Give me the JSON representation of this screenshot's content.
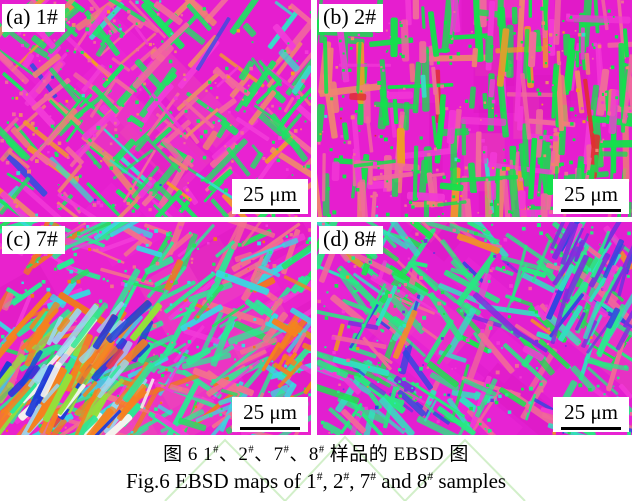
{
  "figure": {
    "panels": [
      {
        "id": "a",
        "label": "(a) 1#",
        "scale_label": "25 μm",
        "texture": {
          "seed": 11,
          "base": "#e61ecf",
          "patches": {
            "count": 16,
            "colors": [
              "#d916bd",
              "#f02ad8",
              "#ef4fb0"
            ],
            "opacity": 0.38
          },
          "laths": {
            "count": 260,
            "angles": [
              45,
              -45,
              40,
              -50
            ],
            "jitter": 10,
            "len": [
              14,
              62
            ],
            "wid": [
              2.5,
              7
            ],
            "palette": [
              [
                "#1ce463",
                5
              ],
              [
                "#f2689e",
                3
              ],
              [
                "#ee8570",
                2
              ],
              [
                "#38dcc8",
                0.8
              ],
              [
                "#f23ad8",
                2
              ],
              [
                "#f2a024",
                0.5
              ],
              [
                "#2b50e0",
                0.25
              ]
            ]
          },
          "speckles": {
            "count": 230,
            "size": [
              1.5,
              4
            ]
          },
          "clusters": []
        }
      },
      {
        "id": "b",
        "label": "(b) 2#",
        "scale_label": "25 μm",
        "texture": {
          "seed": 22,
          "base": "#e61ecf",
          "patches": {
            "count": 16,
            "colors": [
              "#d916bd",
              "#f02ad8",
              "#ef4fb0"
            ],
            "opacity": 0.38
          },
          "laths": {
            "count": 250,
            "angles": [
              90,
              90,
              90,
              0,
              88,
              92
            ],
            "jitter": 7,
            "len": [
              16,
              70
            ],
            "wid": [
              3,
              8
            ],
            "palette": [
              [
                "#14e04c",
                6
              ],
              [
                "#f06a9c",
                2.5
              ],
              [
                "#ee8570",
                1.5
              ],
              [
                "#f238d6",
                2
              ],
              [
                "#38dcc8",
                0.4
              ],
              [
                "#f09a28",
                0.4
              ],
              [
                "#e03030",
                0.2
              ]
            ]
          },
          "speckles": {
            "count": 240,
            "size": [
              1.5,
              4
            ]
          },
          "clusters": []
        }
      },
      {
        "id": "c",
        "label": "(c) 7#",
        "scale_label": "25 μm",
        "texture": {
          "seed": 33,
          "base": "#e922cd",
          "patches": {
            "count": 14,
            "colors": [
              "#d916bd",
              "#f02ad8",
              "#ef55b4"
            ],
            "opacity": 0.38
          },
          "laths": {
            "count": 250,
            "angles": [
              -30,
              25,
              -60,
              -25
            ],
            "jitter": 12,
            "len": [
              16,
              66
            ],
            "wid": [
              2.5,
              7
            ],
            "palette": [
              [
                "#2de895",
                5
              ],
              [
                "#38d8e0",
                2
              ],
              [
                "#f2708e",
                2.5
              ],
              [
                "#f23ad8",
                1.5
              ],
              [
                "#25e060",
                1.5
              ],
              [
                "#f07820",
                0.7
              ]
            ]
          },
          "speckles": {
            "count": 220,
            "size": [
              1.5,
              4
            ]
          },
          "clusters": [
            {
              "region": [
                0,
                95,
                150,
                122
              ],
              "count": 120,
              "angles": [
                -55,
                -48,
                -62
              ],
              "jitter": 6,
              "len": [
                16,
                66
              ],
              "wid": [
                3,
                8
              ],
              "palette": [
                [
                  "#f5821e",
                  4
                ],
                [
                  "#1e3cd8",
                  3
                ],
                [
                  "#93e03a",
                  2.5
                ],
                [
                  "#9ad8f0",
                  1.5
                ],
                [
                  "#f5f5ef",
                  1
                ],
                [
                  "#e84040",
                  0.8
                ],
                [
                  "#2de895",
                  1
                ]
              ]
            },
            {
              "region": [
                255,
                60,
                61,
                157
              ],
              "count": 40,
              "angles": [
                -55,
                30
              ],
              "jitter": 8,
              "len": [
                12,
                40
              ],
              "wid": [
                3,
                7
              ],
              "palette": [
                [
                  "#f5821e",
                  3
                ],
                [
                  "#38d8e0",
                  1.5
                ],
                [
                  "#2de895",
                  1.5
                ],
                [
                  "#f2708e",
                  1
                ]
              ]
            }
          ]
        }
      },
      {
        "id": "d",
        "label": "(d) 8#",
        "scale_label": "25 μm",
        "texture": {
          "seed": 44,
          "base": "#e21fd0",
          "patches": {
            "count": 15,
            "colors": [
              "#d916bd",
              "#f02ad8",
              "#ef4fb0"
            ],
            "opacity": 0.38
          },
          "laths": {
            "count": 255,
            "angles": [
              40,
              -65,
              20,
              45
            ],
            "jitter": 12,
            "len": [
              16,
              64
            ],
            "wid": [
              2.5,
              7
            ],
            "palette": [
              [
                "#28e882",
                5
              ],
              [
                "#32dfc0",
                1.5
              ],
              [
                "#f0689a",
                2
              ],
              [
                "#f238d6",
                1.5
              ],
              [
                "#1fe050",
                1.5
              ],
              [
                "#ef8f2a",
                0.5
              ],
              [
                "#7a30dd",
                0.7
              ],
              [
                "#3346e0",
                0.5
              ]
            ]
          },
          "speckles": {
            "count": 230,
            "size": [
              1.5,
              4
            ]
          },
          "clusters": [
            {
              "region": [
                240,
                0,
                76,
                120
              ],
              "count": 45,
              "angles": [
                -70,
                -60
              ],
              "jitter": 8,
              "len": [
                20,
                60
              ],
              "wid": [
                2.5,
                6
              ],
              "palette": [
                [
                  "#7a30dd",
                  3
                ],
                [
                  "#3346e0",
                  1.5
                ],
                [
                  "#f23ad8",
                  1
                ],
                [
                  "#2ce88f",
                  1
                ],
                [
                  "#32dfc0",
                  0.8
                ]
              ]
            }
          ]
        }
      }
    ],
    "caption": {
      "line1_segments": [
        {
          "t": "图 6  1"
        },
        {
          "t": "#",
          "sup": true
        },
        {
          "t": "、2"
        },
        {
          "t": "#",
          "sup": true
        },
        {
          "t": "、7"
        },
        {
          "t": "#",
          "sup": true
        },
        {
          "t": "、8"
        },
        {
          "t": "#",
          "sup": true
        },
        {
          "t": " 样品的 EBSD 图"
        }
      ],
      "line2_segments": [
        {
          "t": "Fig.6  EBSD maps of 1"
        },
        {
          "t": "#",
          "sup": true
        },
        {
          "t": ", 2"
        },
        {
          "t": "#",
          "sup": true
        },
        {
          "t": ", 7"
        },
        {
          "t": "#",
          "sup": true
        },
        {
          "t": " and 8"
        },
        {
          "t": "#",
          "sup": true
        },
        {
          "t": " samples"
        }
      ],
      "watermark_color": "#bfe8b2"
    }
  }
}
